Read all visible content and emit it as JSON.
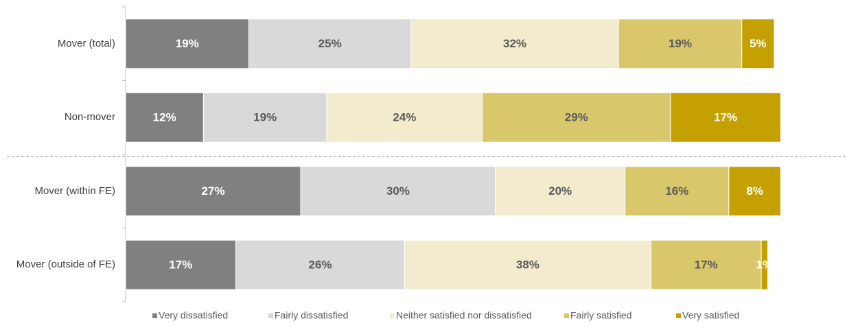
{
  "chart_data": {
    "type": "stacked-barh",
    "categories": [
      "Mover (total)",
      "Non-mover",
      "Mover (within FE)",
      "Mover (outside of FE)"
    ],
    "xlim": [
      0,
      100
    ],
    "series": [
      {
        "name": "Very dissatisfied",
        "color": "#808080",
        "values": [
          19,
          12,
          27,
          17
        ],
        "value_labels": [
          "19%",
          "12%",
          "27%",
          "17%"
        ]
      },
      {
        "name": "Fairly dissatisfied",
        "color": "#d9d9d9",
        "values": [
          25,
          19,
          30,
          26
        ],
        "value_labels": [
          "25%",
          "19%",
          "30%",
          "26%"
        ]
      },
      {
        "name": "Neither satisfied nor dissatisfied",
        "color": "#f2ebcd",
        "values": [
          32,
          24,
          20,
          38
        ],
        "value_labels": [
          "32%",
          "24%",
          "20%",
          "38%"
        ]
      },
      {
        "name": "Fairly satisfied",
        "color": "#d9c76c",
        "values": [
          19,
          29,
          16,
          17
        ],
        "value_labels": [
          "19%",
          "29%",
          "16%",
          "17%"
        ]
      },
      {
        "name": "Very satisfied",
        "color": "#c4a100",
        "values": [
          5,
          17,
          8,
          1
        ],
        "value_labels": [
          "5%",
          "17%",
          "8%",
          "1%"
        ]
      }
    ],
    "legend": "bottom"
  }
}
